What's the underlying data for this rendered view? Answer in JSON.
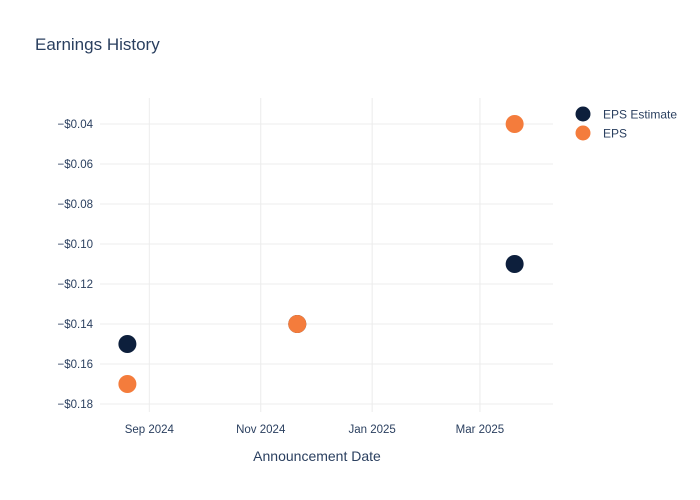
{
  "chart_data": {
    "type": "scatter",
    "title": "Earnings History",
    "xlabel": "Announcement Date",
    "ylabel": "",
    "x_ticks": [
      {
        "date": "2024-09-01",
        "label": "Sep 2024"
      },
      {
        "date": "2024-11-01",
        "label": "Nov 2024"
      },
      {
        "date": "2025-01-01",
        "label": "Jan 2025"
      },
      {
        "date": "2025-03-01",
        "label": "Mar 2025"
      }
    ],
    "y_ticks": [
      -0.04,
      -0.06,
      -0.08,
      -0.1,
      -0.12,
      -0.14,
      -0.16,
      -0.18
    ],
    "xlim": [
      "2024-08-05",
      "2025-04-10"
    ],
    "ylim": [
      -0.184,
      -0.027
    ],
    "grid": true,
    "legend_position": "top-right",
    "series": [
      {
        "name": "EPS Estimate",
        "color": "#0d1f3c",
        "points": [
          {
            "x": "2024-08-20",
            "y": -0.15
          },
          {
            "x": "2024-11-21",
            "y": -0.14
          },
          {
            "x": "2025-03-20",
            "y": -0.11
          }
        ]
      },
      {
        "name": "EPS",
        "color": "#f47c3c",
        "points": [
          {
            "x": "2024-08-20",
            "y": -0.17
          },
          {
            "x": "2024-11-21",
            "y": -0.14
          },
          {
            "x": "2025-03-20",
            "y": -0.04
          }
        ]
      }
    ]
  }
}
